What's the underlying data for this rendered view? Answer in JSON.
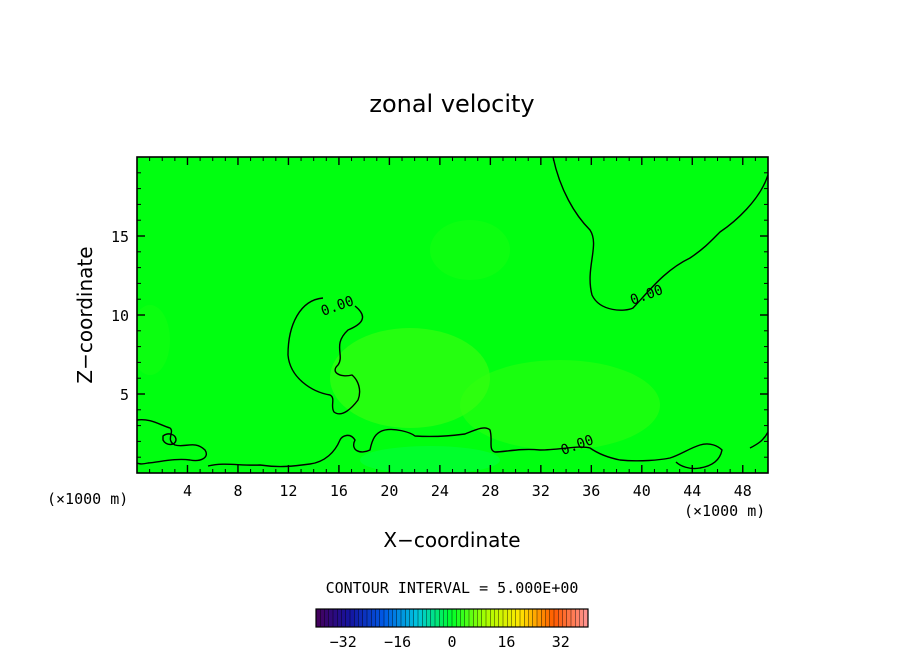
{
  "chart_data": {
    "type": "heatmap",
    "title": "zonal velocity",
    "xlabel": "X−coordinate",
    "ylabel": "Z−coordinate",
    "x_unit_left": "(×1000 m)",
    "x_unit_right": "(×1000 m)",
    "xlim": [
      0,
      50
    ],
    "ylim": [
      0,
      20
    ],
    "x_ticks": [
      4,
      8,
      12,
      16,
      20,
      24,
      28,
      32,
      36,
      40,
      44,
      48
    ],
    "y_ticks": [
      5,
      10,
      15
    ],
    "x_tick_labels": [
      "4",
      "8",
      "12",
      "16",
      "20",
      "24",
      "28",
      "32",
      "36",
      "40",
      "44",
      "48"
    ],
    "y_tick_labels": [
      "5",
      "10",
      "15"
    ],
    "field_color": "#00ff10",
    "contour_level": 0.0,
    "contour_labels": [
      {
        "text": "0.00",
        "x": 16.0,
        "z": 10.3
      },
      {
        "text": "0.00",
        "x": 40.5,
        "z": 11.0
      },
      {
        "text": "0.00",
        "x": 35.0,
        "z": 1.5
      }
    ],
    "contour_interval_text": "CONTOUR INTERVAL = 5.000E+00",
    "colorbar": {
      "min": -40,
      "max": 40,
      "step": 5,
      "tick_values": [
        -32,
        -16,
        0,
        16,
        32
      ],
      "tick_labels": [
        "−32",
        "−16",
        "0",
        "16",
        "32"
      ]
    }
  }
}
